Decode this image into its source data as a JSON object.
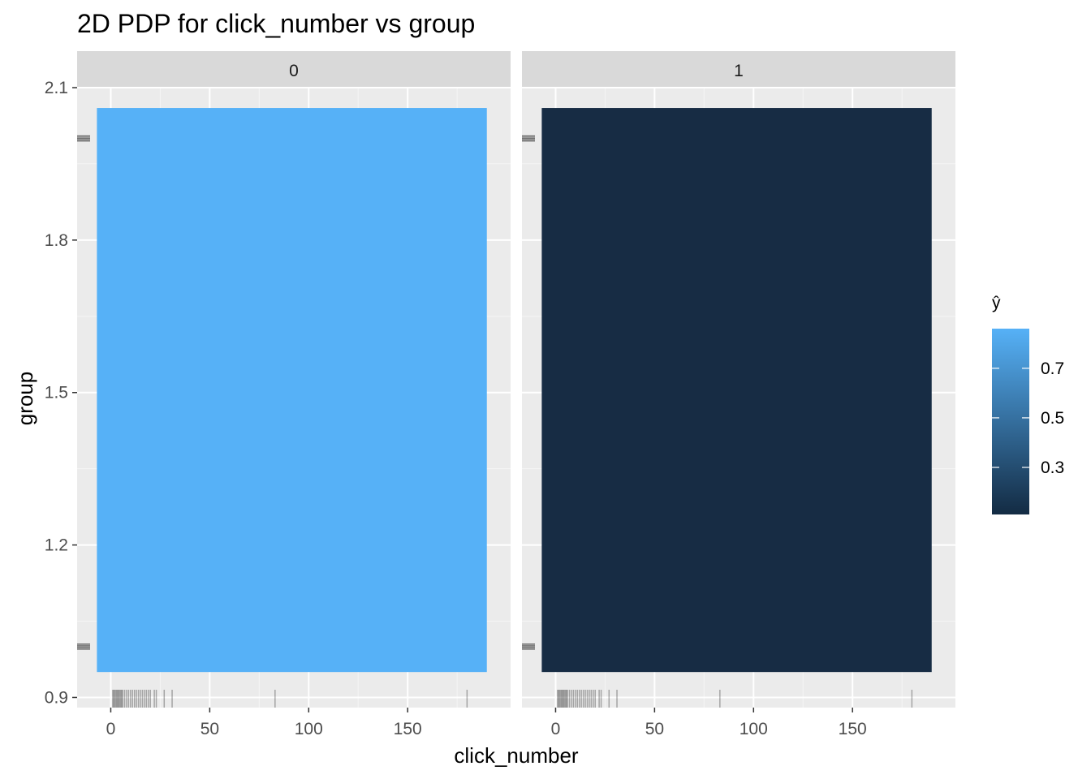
{
  "chart_data": {
    "type": "heatmap",
    "title": "2D PDP for click_number vs group",
    "xlabel": "click_number",
    "ylabel": "group",
    "facet_labels": [
      "0",
      "1"
    ],
    "x_ticks": [
      0,
      50,
      100,
      150
    ],
    "y_ticks": [
      0.9,
      1.2,
      1.5,
      1.8,
      2.1
    ],
    "y_tick_labels": [
      "0.9",
      "1.2",
      "1.5",
      "1.8",
      "2.1"
    ],
    "xlim": [
      -17,
      202
    ],
    "ylim": [
      0.88,
      2.1
    ],
    "tile_x_range": [
      -7,
      190
    ],
    "tile_y_range": [
      0.95,
      2.06
    ],
    "panels": [
      {
        "facet": "0",
        "value": 0.85,
        "color": "#56B1F7"
      },
      {
        "facet": "1",
        "value": 0.12,
        "color": "#172C44"
      }
    ],
    "x_rug": [
      1,
      1.5,
      2,
      2.5,
      3,
      3.5,
      4,
      4.5,
      5,
      5.5,
      6,
      7,
      8,
      9,
      10,
      11,
      12,
      13,
      14,
      15,
      16,
      17,
      18,
      19,
      20,
      22,
      23,
      27,
      31,
      83,
      180
    ],
    "y_rug": [
      1,
      2
    ],
    "legend": {
      "title": "ŷ",
      "position": "right",
      "ticks": [
        0.3,
        0.5,
        0.7
      ],
      "tick_labels": [
        "0.3",
        "0.5",
        "0.7"
      ],
      "range": [
        0.11,
        0.86
      ],
      "color_low": "#132B43",
      "color_high": "#56B1F7"
    }
  }
}
